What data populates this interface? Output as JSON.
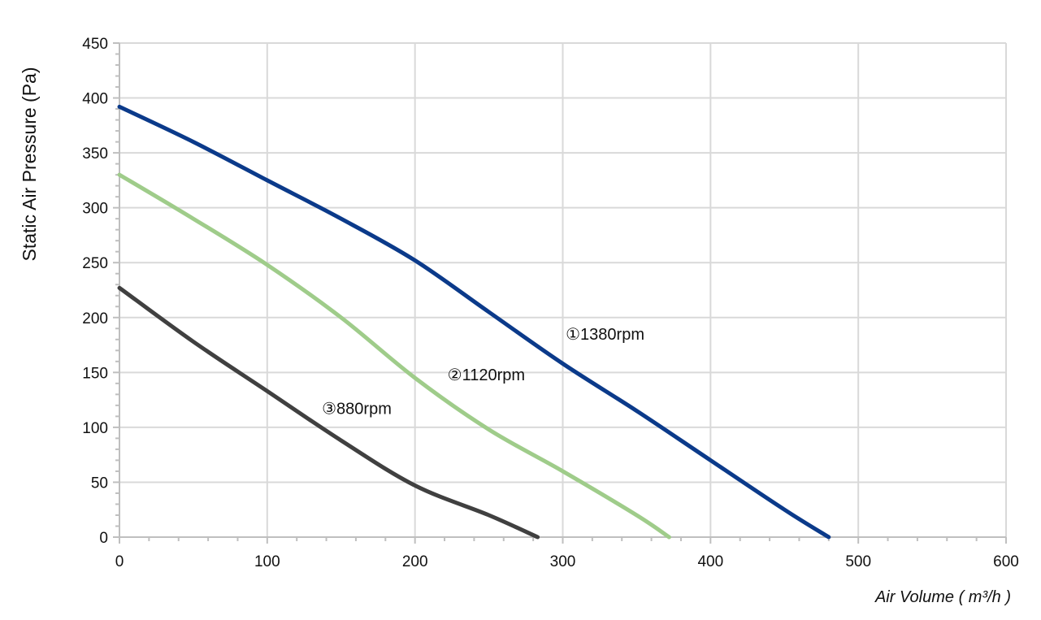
{
  "chart_data": {
    "type": "line",
    "title": "",
    "xlabel": "Air Volume ( m³/h )",
    "ylabel": "Static Air Pressure  (Pa)",
    "xlim": [
      0,
      600
    ],
    "ylim": [
      0,
      450
    ],
    "x_ticks": [
      0,
      100,
      200,
      300,
      400,
      500,
      600
    ],
    "y_ticks": [
      0,
      50,
      100,
      150,
      200,
      250,
      300,
      350,
      400,
      450
    ],
    "grid": true,
    "legend": "inline-labels",
    "series": [
      {
        "name": "①1380rpm",
        "color": "#0b3a8a",
        "points": [
          [
            0,
            392
          ],
          [
            50,
            360
          ],
          [
            100,
            325
          ],
          [
            150,
            290
          ],
          [
            200,
            252
          ],
          [
            250,
            205
          ],
          [
            300,
            158
          ],
          [
            350,
            115
          ],
          [
            400,
            70
          ],
          [
            450,
            25
          ],
          [
            480,
            0
          ]
        ],
        "label_at": [
          302,
          180
        ]
      },
      {
        "name": "②1120rpm",
        "color": "#9fcc8a",
        "points": [
          [
            0,
            330
          ],
          [
            50,
            290
          ],
          [
            100,
            248
          ],
          [
            150,
            200
          ],
          [
            200,
            145
          ],
          [
            250,
            98
          ],
          [
            300,
            60
          ],
          [
            350,
            20
          ],
          [
            372,
            0
          ]
        ],
        "label_at": [
          222,
          143
        ]
      },
      {
        "name": "③880rpm",
        "color": "#404040",
        "points": [
          [
            0,
            227
          ],
          [
            50,
            178
          ],
          [
            100,
            133
          ],
          [
            150,
            88
          ],
          [
            200,
            47
          ],
          [
            250,
            20
          ],
          [
            283,
            0
          ]
        ],
        "label_at": [
          137,
          112
        ]
      }
    ]
  }
}
